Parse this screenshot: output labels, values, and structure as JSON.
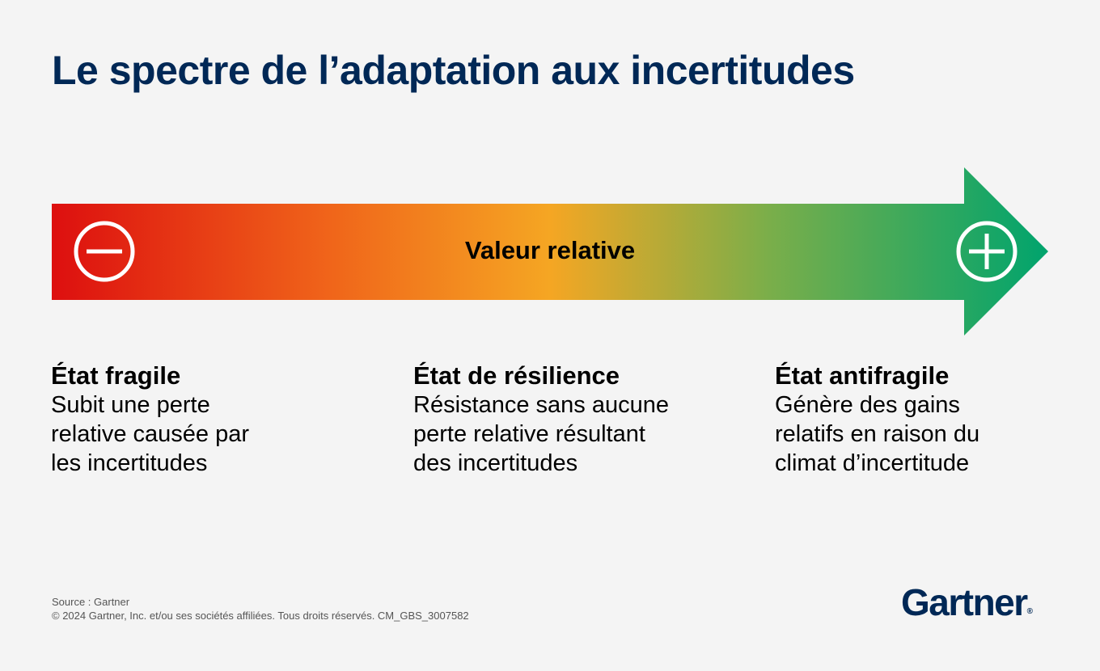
{
  "title": "Le spectre de l’adaptation aux incertitudes",
  "spectrum": {
    "label": "Valeur relative",
    "left_icon": "minus-circle-icon",
    "right_icon": "plus-circle-icon",
    "colors": [
      "#dd0f0f",
      "#f0651a",
      "#f5a623",
      "#5ab04e",
      "#00a46d"
    ]
  },
  "states": [
    {
      "heading": "État fragile",
      "desc_lines": [
        "Subit une perte",
        "relative causée par",
        "les incertitudes"
      ]
    },
    {
      "heading": "État de résilience",
      "desc_lines": [
        "Résistance sans aucune",
        "perte relative résultant",
        "des incertitudes"
      ]
    },
    {
      "heading": "État antifragile",
      "desc_lines": [
        "Génère des gains",
        "relatifs en raison du",
        "climat d’incertitude"
      ]
    }
  ],
  "footer": {
    "source": "Source : Gartner",
    "copyright": "© 2024 Gartner, Inc. et/ou ses sociétés affiliées. Tous droits réservés. CM_GBS_3007582"
  },
  "logo": {
    "text": "Gartner",
    "mark": "®"
  }
}
